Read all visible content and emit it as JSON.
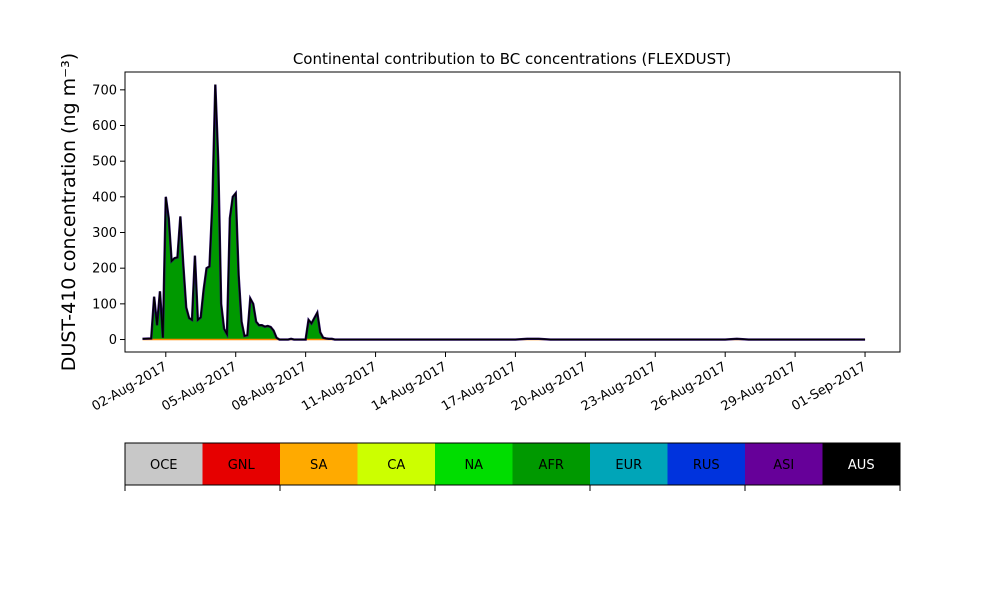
{
  "chart_data": {
    "type": "area",
    "stacked": true,
    "title": "Continental contribution to BC concentrations (FLEXDUST)",
    "ylabel": "DUST-410 concentration (ng m⁻³)",
    "xlabel": "",
    "ylim": [
      -35,
      750
    ],
    "xlim": [
      "2017-07-31T06:00",
      "2017-09-02T12:00"
    ],
    "yticks": [
      0,
      100,
      200,
      300,
      400,
      500,
      600,
      700
    ],
    "xticks": [
      "02-Aug-2017",
      "05-Aug-2017",
      "08-Aug-2017",
      "11-Aug-2017",
      "14-Aug-2017",
      "17-Aug-2017",
      "20-Aug-2017",
      "23-Aug-2017",
      "26-Aug-2017",
      "29-Aug-2017",
      "01-Sep-2017"
    ],
    "grid": false,
    "dominant_series": "AFR",
    "outline_color": "#000000",
    "series_data": {
      "x": [
        "2017-08-01T00:00",
        "2017-08-01T09:00",
        "2017-08-01T12:00",
        "2017-08-01T15:00",
        "2017-08-01T18:00",
        "2017-08-01T21:00",
        "2017-08-02T00:00",
        "2017-08-02T03:00",
        "2017-08-02T06:00",
        "2017-08-02T09:00",
        "2017-08-02T12:00",
        "2017-08-02T15:00",
        "2017-08-02T18:00",
        "2017-08-02T21:00",
        "2017-08-03T00:00",
        "2017-08-03T03:00",
        "2017-08-03T06:00",
        "2017-08-03T09:00",
        "2017-08-03T12:00",
        "2017-08-03T15:00",
        "2017-08-03T18:00",
        "2017-08-03T21:00",
        "2017-08-04T00:00",
        "2017-08-04T03:00",
        "2017-08-04T06:00",
        "2017-08-04T09:00",
        "2017-08-04T12:00",
        "2017-08-04T15:00",
        "2017-08-04T18:00",
        "2017-08-04T21:00",
        "2017-08-05T00:00",
        "2017-08-05T03:00",
        "2017-08-05T06:00",
        "2017-08-05T09:00",
        "2017-08-05T12:00",
        "2017-08-05T15:00",
        "2017-08-05T18:00",
        "2017-08-05T21:00",
        "2017-08-06T00:00",
        "2017-08-06T03:00",
        "2017-08-06T06:00",
        "2017-08-06T09:00",
        "2017-08-06T12:00",
        "2017-08-06T15:00",
        "2017-08-06T18:00",
        "2017-08-06T21:00",
        "2017-08-07T00:00",
        "2017-08-07T03:00",
        "2017-08-07T06:00",
        "2017-08-07T09:00",
        "2017-08-07T12:00",
        "2017-08-07T15:00",
        "2017-08-07T18:00",
        "2017-08-07T21:00",
        "2017-08-08T00:00",
        "2017-08-08T03:00",
        "2017-08-08T06:00",
        "2017-08-08T09:00",
        "2017-08-08T12:00",
        "2017-08-08T15:00",
        "2017-08-08T18:00",
        "2017-08-08T21:00",
        "2017-08-09T00:00",
        "2017-08-09T03:00",
        "2017-08-09T06:00",
        "2017-08-09T09:00",
        "2017-08-09T12:00",
        "2017-08-09T15:00",
        "2017-08-09T18:00",
        "2017-08-09T21:00",
        "2017-08-10T00:00",
        "2017-08-10T03:00",
        "2017-08-10T06:00",
        "2017-08-10T09:00",
        "2017-08-10T12:00",
        "2017-08-10T15:00",
        "2017-08-10T18:00",
        "2017-08-10T21:00",
        "2017-08-11T00:00",
        "2017-08-11T03:00",
        "2017-08-11T06:00",
        "2017-08-11T09:00",
        "2017-08-11T12:00",
        "2017-08-11T15:00",
        "2017-08-12T00:00",
        "2017-08-13T00:00",
        "2017-08-14T00:00",
        "2017-08-15T00:00",
        "2017-08-16T00:00",
        "2017-08-17T00:00",
        "2017-08-17T12:00",
        "2017-08-18T00:00",
        "2017-08-18T12:00",
        "2017-08-19T00:00",
        "2017-08-20T00:00",
        "2017-08-21T00:00",
        "2017-08-22T00:00",
        "2017-08-23T00:00",
        "2017-08-24T00:00",
        "2017-08-25T00:00",
        "2017-08-26T00:00",
        "2017-08-26T12:00",
        "2017-08-27T00:00",
        "2017-08-27T12:00",
        "2017-08-28T00:00",
        "2017-08-28T06:00",
        "2017-08-28T12:00",
        "2017-08-28T18:00",
        "2017-08-29T00:00",
        "2017-08-29T06:00",
        "2017-08-29T12:00",
        "2017-08-30T00:00",
        "2017-08-30T12:00",
        "2017-08-31T00:00",
        "2017-08-31T06:00",
        "2017-08-31T12:00",
        "2017-08-31T15:00",
        "2017-08-31T18:00",
        "2017-08-31T21:00",
        "2017-09-01T00:00"
      ],
      "total": [
        2,
        3,
        120,
        40,
        135,
        5,
        400,
        340,
        220,
        228,
        230,
        345,
        210,
        90,
        60,
        55,
        235,
        55,
        62,
        140,
        200,
        205,
        385,
        715,
        500,
        100,
        30,
        15,
        340,
        400,
        410,
        180,
        50,
        10,
        12,
        115,
        100,
        50,
        40,
        40,
        36,
        38,
        35,
        25,
        5,
        0,
        0,
        0,
        0,
        2,
        0,
        0,
        0,
        0,
        0,
        55,
        45,
        60,
        75,
        20,
        5,
        3,
        2,
        2,
        0,
        0,
        0,
        0,
        0,
        0,
        0,
        0,
        0,
        0,
        0,
        0,
        0,
        0,
        0,
        0,
        0,
        0,
        0,
        0,
        0,
        0,
        0,
        0,
        0,
        0,
        2,
        2,
        0,
        0,
        0,
        0,
        0,
        0,
        0,
        0,
        0,
        2,
        0,
        0,
        0,
        0,
        0,
        0,
        0,
        0,
        0,
        0,
        0,
        0,
        0,
        0,
        0,
        0,
        0,
        0,
        0
      ],
      "note": "AFR dominates the total; other regions contribute near zero"
    }
  },
  "title_text": "Continental contribution to BC concentrations (FLEXDUST)",
  "ylabel_text": "DUST-410 concentration (ng m⁻³)",
  "legend": [
    {
      "code": "OCE",
      "color": "#c8c8c8",
      "text_color": "#000000"
    },
    {
      "code": "GNL",
      "color": "#e60000",
      "text_color": "#000000"
    },
    {
      "code": "SA",
      "color": "#ffaa00",
      "text_color": "#000000"
    },
    {
      "code": "CA",
      "color": "#ccff00",
      "text_color": "#000000"
    },
    {
      "code": "NA",
      "color": "#00dd00",
      "text_color": "#000000"
    },
    {
      "code": "AFR",
      "color": "#009900",
      "text_color": "#000000"
    },
    {
      "code": "EUR",
      "color": "#00a5b8",
      "text_color": "#000000"
    },
    {
      "code": "RUS",
      "color": "#0033dd",
      "text_color": "#000000"
    },
    {
      "code": "ASI",
      "color": "#660099",
      "text_color": "#000000"
    },
    {
      "code": "AUS",
      "color": "#000000",
      "text_color": "#ffffff"
    }
  ]
}
